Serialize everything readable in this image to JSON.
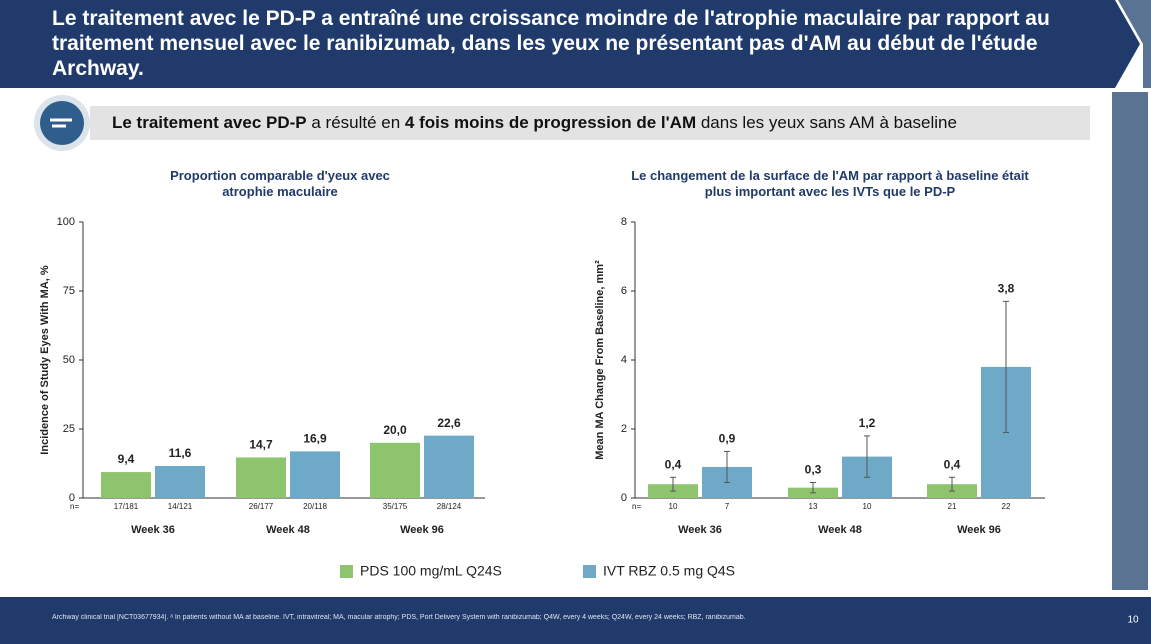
{
  "header": {
    "title": "Le traitement avec le PD-P a entraîné une croissance moindre de l'atrophie maculaire par rapport au traitement mensuel avec le ranibizumab, dans les yeux ne présentant pas d'AM au début de l'étude Archway."
  },
  "callout": [
    {
      "text": "Le traitement avec PD-P",
      "bold": true
    },
    {
      "text": " a résulté en ",
      "bold": false
    },
    {
      "text": "4 fois moins de progression de l'AM",
      "bold": true
    },
    {
      "text": " dans les yeux sans AM à baseline",
      "bold": false
    }
  ],
  "chart_data": [
    {
      "type": "bar",
      "title": "Proportion comparable d'yeux avec atrophie maculaire",
      "y_label": "Incidence of Study Eyes With MA, %",
      "ylim": [
        0,
        100
      ],
      "yticks": [
        0,
        25,
        50,
        75,
        100
      ],
      "n_prefix": "n=",
      "categories": [
        "Week 36",
        "Week 48",
        "Week 96"
      ],
      "series": [
        {
          "name": "PDS 100 mg/mL Q24S",
          "color": "#8fc46f",
          "values": [
            9.4,
            14.7,
            20.0
          ],
          "value_labels": [
            "9,4",
            "14,7",
            "20,0"
          ],
          "n": [
            "17/181",
            "26/177",
            "35/175"
          ]
        },
        {
          "name": "IVT RBZ 0.5 mg Q4S",
          "color": "#6ea9c8",
          "values": [
            11.6,
            16.9,
            22.6
          ],
          "value_labels": [
            "11,6",
            "16,9",
            "22,6"
          ],
          "n": [
            "14/121",
            "20/118",
            "28/124"
          ]
        }
      ]
    },
    {
      "type": "bar",
      "title": "Le changement de la surface de l'AM par rapport à baseline était plus important avec les IVTs que le PD-P",
      "y_label": "Mean MA Change From Baseline, mm²",
      "ylim": [
        0,
        8
      ],
      "yticks": [
        0,
        2,
        4,
        6,
        8
      ],
      "n_prefix": "n=",
      "categories": [
        "Week 36",
        "Week 48",
        "Week 96"
      ],
      "series": [
        {
          "name": "PDS 100 mg/mL Q24S",
          "color": "#8fc46f",
          "values": [
            0.4,
            0.3,
            0.4
          ],
          "errors": [
            0.2,
            0.15,
            0.2
          ],
          "value_labels": [
            "0,4",
            "0,3",
            "0,4"
          ],
          "n": [
            "10",
            "13",
            "21"
          ]
        },
        {
          "name": "IVT RBZ 0.5 mg Q4S",
          "color": "#6ea9c8",
          "values": [
            0.9,
            1.2,
            3.8
          ],
          "errors": [
            0.45,
            0.6,
            1.9
          ],
          "value_labels": [
            "0,9",
            "1,2",
            "3,8"
          ],
          "n": [
            "7",
            "10",
            "22"
          ]
        }
      ]
    }
  ],
  "footer": {
    "note": "Archway clinical trial [NCT03677934]. ᵃ In patients without MA at baseline. IVT, intravitreal; MA, macular atrophy; PDS, Port Delivery System with ranibizumab; Q4W, every 4 weeks; Q24W, every 24 weeks; RBZ, ranibizumab.",
    "page": "10"
  }
}
